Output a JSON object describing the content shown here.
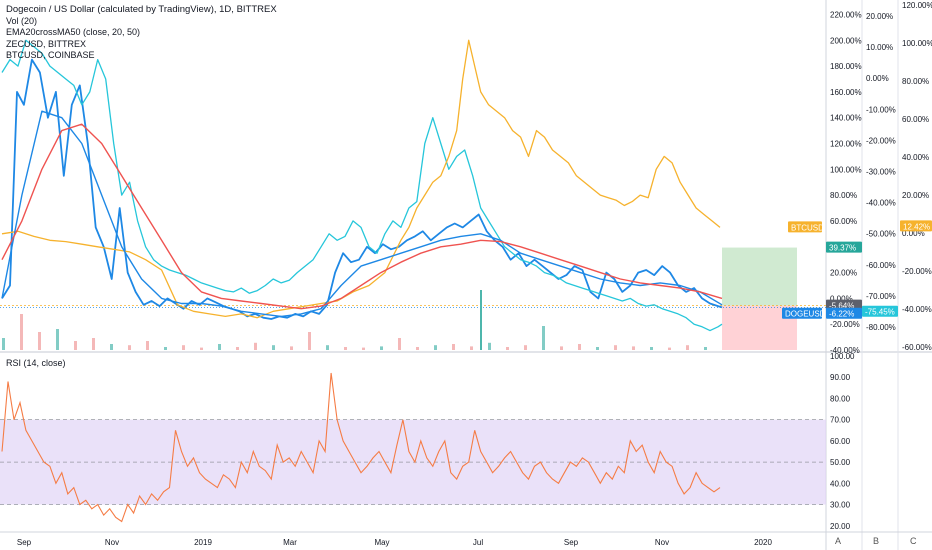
{
  "header": {
    "title": "Dogecoin / US Dollar (calculated by TradingView), 1D, BITTREX",
    "studies": [
      "Vol (20)",
      "EMA20crossMA50 (close, 20, 50)",
      "ZECUSD, BITTREX",
      "BTCUSD, COINBASE"
    ]
  },
  "rsi_pane": {
    "title": "RSI (14, close)"
  },
  "scale_tabs": [
    "A",
    "B",
    "C"
  ],
  "colors": {
    "doge": "#1e88e5",
    "zec": "#26c6da",
    "btc": "#f6b22d",
    "ema_fast": "#1e88e5",
    "ma_slow": "#ef5350",
    "rsi": "#f57c45",
    "rsi_band": "#e1d4f7",
    "vol_up": "#4db6ac",
    "vol_down": "#ef9a9a",
    "target": "#c8e6c9",
    "stop": "#ffcdd2",
    "tag_green": "#26a69a",
    "tag_gray": "#5d606b",
    "tag_cyan": "#26c6da",
    "tag_blue": "#1e88e5",
    "tag_btc": "#f6b22d"
  },
  "chart_data": [
    {
      "type": "line",
      "title": "Dogecoin / US Dollar (calculated by TradingView), 1D, BITTREX",
      "x_ticks": [
        "Sep",
        "Nov",
        "2019",
        "Mar",
        "May",
        "Jul",
        "Sep",
        "Nov",
        "2020"
      ],
      "y_axis_1": {
        "ticks": [
          "220.00%",
          "200.00%",
          "180.00%",
          "160.00%",
          "140.00%",
          "120.00%",
          "100.00%",
          "80.00%",
          "60.00%",
          "40.00%",
          "20.00%",
          "0.00%",
          "-20.00%",
          "-40.00%"
        ],
        "ylim": [
          -40,
          225
        ]
      },
      "y_axis_2": {
        "ticks": [
          "20.00%",
          "10.00%",
          "0.00%",
          "-10.00%",
          "-20.00%",
          "-30.00%",
          "-40.00%",
          "-50.00%",
          "-60.00%",
          "-70.00%",
          "-80.00%"
        ]
      },
      "y_axis_3": {
        "ticks": [
          "120.00%",
          "100.00%",
          "80.00%",
          "60.00%",
          "40.00%",
          "20.00%",
          "0.00%",
          "-20.00%",
          "-40.00%",
          "-60.00%"
        ]
      },
      "series": [
        {
          "name": "DOGEUSD",
          "color": "#1e88e5",
          "x": [
            0,
            8,
            15,
            22,
            30,
            38,
            46,
            54,
            62,
            70,
            78,
            86,
            94,
            102,
            110,
            118,
            126,
            134,
            142,
            150,
            158,
            166,
            174,
            182,
            190,
            198,
            206,
            214,
            222,
            230,
            238,
            246,
            254,
            262,
            270,
            278,
            286,
            294,
            302,
            310,
            318,
            326,
            334,
            342,
            350,
            358,
            366,
            374,
            382,
            390,
            398,
            406,
            414,
            422,
            430,
            438,
            446,
            454,
            462,
            470,
            478,
            486,
            494,
            502,
            510,
            518,
            526,
            534,
            542,
            550,
            558,
            566,
            574,
            582,
            590,
            598,
            606,
            614,
            622,
            630,
            638,
            646,
            654,
            662,
            670,
            678,
            686,
            694,
            702,
            710,
            718,
            722
          ],
          "y": [
            0,
            10,
            160,
            150,
            185,
            175,
            140,
            160,
            95,
            150,
            165,
            120,
            55,
            40,
            15,
            70,
            20,
            5,
            -5,
            -2,
            -6,
            0,
            -4,
            -8,
            -2,
            -5,
            0,
            -3,
            -6,
            -8,
            -10,
            -14,
            -12,
            -15,
            -16,
            -14,
            -15,
            -12,
            -14,
            -10,
            -12,
            -5,
            20,
            35,
            28,
            30,
            40,
            35,
            42,
            38,
            40,
            45,
            48,
            52,
            45,
            50,
            55,
            58,
            55,
            60,
            65,
            52,
            45,
            40,
            30,
            35,
            25,
            30,
            25,
            20,
            15,
            18,
            25,
            22,
            5,
            0,
            20,
            15,
            5,
            10,
            20,
            22,
            18,
            25,
            20,
            10,
            5,
            8,
            0,
            -4,
            -6,
            -7
          ],
          "last_label": "-6.22%"
        },
        {
          "name": "ZECUSD",
          "color": "#26c6da",
          "x": [
            0,
            8,
            16,
            24,
            32,
            40,
            48,
            56,
            64,
            72,
            80,
            88,
            96,
            104,
            112,
            120,
            128,
            136,
            144,
            152,
            160,
            168,
            176,
            184,
            192,
            200,
            208,
            216,
            224,
            232,
            240,
            248,
            256,
            264,
            272,
            280,
            288,
            296,
            304,
            312,
            320,
            328,
            336,
            344,
            352,
            360,
            368,
            376,
            384,
            392,
            400,
            408,
            416,
            424,
            432,
            440,
            448,
            456,
            464,
            472,
            480,
            488,
            496,
            504,
            512,
            520,
            528,
            536,
            544,
            552,
            560,
            566,
            574,
            582,
            590,
            598,
            606,
            614,
            622,
            630,
            638,
            646,
            654,
            662,
            670,
            678,
            686,
            694,
            702,
            710,
            718,
            722
          ],
          "y": [
            175,
            185,
            180,
            200,
            195,
            190,
            180,
            175,
            170,
            165,
            150,
            160,
            185,
            170,
            120,
            80,
            90,
            60,
            40,
            30,
            25,
            22,
            20,
            18,
            15,
            12,
            10,
            8,
            6,
            5,
            8,
            4,
            6,
            10,
            15,
            12,
            14,
            20,
            25,
            30,
            40,
            50,
            45,
            48,
            60,
            55,
            40,
            35,
            50,
            60,
            55,
            70,
            75,
            120,
            140,
            120,
            100,
            110,
            115,
            95,
            70,
            60,
            50,
            40,
            35,
            30,
            28,
            25,
            20,
            18,
            15,
            12,
            10,
            8,
            6,
            4,
            2,
            0,
            -2,
            0,
            -4,
            -6,
            -5,
            -8,
            -10,
            -12,
            -15,
            -20,
            -22,
            -25,
            -22,
            -20
          ],
          "last_label": "-75.45%"
        },
        {
          "name": "BTCUSD",
          "color": "#f6b22d",
          "x": [
            0,
            16,
            32,
            48,
            64,
            80,
            96,
            112,
            128,
            144,
            160,
            176,
            192,
            208,
            224,
            240,
            256,
            272,
            288,
            304,
            320,
            336,
            352,
            368,
            384,
            400,
            408,
            416,
            424,
            432,
            440,
            448,
            456,
            462,
            468,
            474,
            480,
            488,
            496,
            504,
            512,
            520,
            528,
            536,
            544,
            552,
            560,
            568,
            576,
            584,
            592,
            600,
            608,
            616,
            624,
            632,
            640,
            648,
            656,
            664,
            672,
            680,
            688,
            696,
            704,
            712,
            720
          ],
          "y": [
            50,
            52,
            48,
            45,
            44,
            42,
            40,
            38,
            36,
            30,
            22,
            -5,
            -10,
            -12,
            -14,
            -12,
            -15,
            -10,
            -8,
            -6,
            -4,
            -2,
            5,
            10,
            20,
            45,
            55,
            70,
            80,
            90,
            95,
            110,
            130,
            170,
            200,
            180,
            160,
            150,
            145,
            140,
            130,
            125,
            110,
            130,
            125,
            115,
            110,
            105,
            95,
            90,
            85,
            80,
            78,
            76,
            72,
            75,
            80,
            78,
            100,
            110,
            105,
            90,
            80,
            70,
            65,
            60,
            55
          ],
          "last_label": "12.42%"
        },
        {
          "name": "EMA20",
          "color": "#1e88e5",
          "x": [
            0,
            20,
            40,
            60,
            80,
            100,
            120,
            140,
            160,
            180,
            200,
            220,
            240,
            260,
            280,
            300,
            320,
            340,
            360,
            380,
            400,
            420,
            440,
            460,
            480,
            500,
            520,
            540,
            560,
            580,
            600,
            620,
            640,
            660,
            680,
            700,
            722
          ],
          "y": [
            0,
            80,
            145,
            140,
            120,
            80,
            40,
            15,
            0,
            -4,
            -4,
            -6,
            -10,
            -12,
            -14,
            -12,
            -8,
            10,
            25,
            30,
            35,
            40,
            45,
            48,
            50,
            45,
            35,
            30,
            25,
            20,
            15,
            12,
            10,
            12,
            10,
            5,
            -5
          ]
        },
        {
          "name": "MA50",
          "color": "#ef5350",
          "x": [
            0,
            20,
            40,
            60,
            80,
            100,
            120,
            140,
            160,
            180,
            200,
            220,
            240,
            260,
            280,
            300,
            320,
            340,
            360,
            380,
            400,
            420,
            440,
            460,
            480,
            500,
            520,
            540,
            560,
            580,
            600,
            620,
            640,
            660,
            680,
            700,
            722
          ],
          "y": [
            30,
            60,
            100,
            130,
            135,
            120,
            95,
            70,
            45,
            20,
            5,
            0,
            -2,
            -4,
            -6,
            -8,
            -6,
            0,
            10,
            20,
            28,
            35,
            40,
            42,
            45,
            44,
            40,
            35,
            30,
            25,
            20,
            15,
            12,
            10,
            8,
            5,
            0
          ]
        }
      ],
      "price_tags": [
        {
          "label": "BTCUSD",
          "value": "12.42%"
        },
        {
          "label": "39.37%"
        },
        {
          "label": "-5.64%"
        },
        {
          "label": "DOGEUSD",
          "value": "-6.22%"
        },
        {
          "value": "-75.45%"
        }
      ],
      "volume_pct": [
        20,
        60,
        30,
        35,
        15,
        20,
        10,
        8,
        15,
        5,
        8,
        4,
        10,
        5,
        12,
        8,
        6,
        30,
        8,
        5,
        4,
        6,
        20,
        5,
        8,
        10,
        6,
        12,
        5,
        8,
        40,
        6,
        10,
        5,
        8,
        6,
        5,
        4,
        8,
        5
      ],
      "position": {
        "target_top": 39.37,
        "entry": -5.64,
        "stop_bottom": -40
      }
    },
    {
      "type": "line",
      "title": "RSI (14, close)",
      "y_ticks": [
        "100.00",
        "90.00",
        "80.00",
        "70.00",
        "60.00",
        "50.00",
        "40.00",
        "30.00",
        "20.00"
      ],
      "ylim": [
        18,
        100
      ],
      "band": [
        30,
        70
      ],
      "series": [
        {
          "name": "RSI",
          "color": "#f57c45",
          "x": [
            0,
            6,
            12,
            18,
            24,
            30,
            36,
            42,
            48,
            54,
            60,
            66,
            72,
            78,
            84,
            90,
            96,
            102,
            108,
            114,
            120,
            126,
            132,
            138,
            144,
            150,
            156,
            162,
            168,
            174,
            180,
            186,
            192,
            198,
            204,
            210,
            216,
            222,
            228,
            234,
            240,
            246,
            252,
            258,
            264,
            270,
            276,
            282,
            288,
            294,
            300,
            306,
            312,
            318,
            324,
            330,
            336,
            342,
            348,
            354,
            360,
            366,
            372,
            378,
            384,
            390,
            396,
            402,
            408,
            414,
            420,
            426,
            432,
            438,
            444,
            450,
            456,
            462,
            468,
            474,
            480,
            486,
            492,
            498,
            504,
            510,
            516,
            522,
            528,
            534,
            540,
            546,
            552,
            558,
            564,
            570,
            576,
            582,
            588,
            594,
            600,
            606,
            612,
            618,
            624,
            630,
            636,
            642,
            648,
            654,
            660,
            666,
            672,
            678,
            684,
            690,
            696,
            702,
            708,
            714,
            720
          ],
          "y": [
            55,
            88,
            70,
            78,
            65,
            60,
            55,
            50,
            48,
            40,
            45,
            35,
            38,
            30,
            32,
            28,
            30,
            25,
            28,
            24,
            22,
            30,
            26,
            34,
            30,
            35,
            32,
            36,
            38,
            65,
            55,
            48,
            52,
            45,
            42,
            40,
            38,
            44,
            42,
            38,
            50,
            45,
            55,
            48,
            46,
            42,
            58,
            50,
            52,
            48,
            55,
            50,
            45,
            60,
            55,
            92,
            70,
            60,
            55,
            50,
            45,
            48,
            52,
            55,
            50,
            45,
            58,
            70,
            55,
            50,
            60,
            52,
            48,
            55,
            60,
            45,
            42,
            48,
            50,
            65,
            55,
            50,
            45,
            48,
            52,
            55,
            50,
            45,
            42,
            48,
            50,
            45,
            42,
            40,
            45,
            50,
            48,
            52,
            50,
            45,
            40,
            45,
            42,
            48,
            45,
            60,
            55,
            58,
            50,
            45,
            55,
            50,
            48,
            40,
            35,
            38,
            45,
            40,
            38,
            36,
            38
          ]
        }
      ]
    }
  ]
}
